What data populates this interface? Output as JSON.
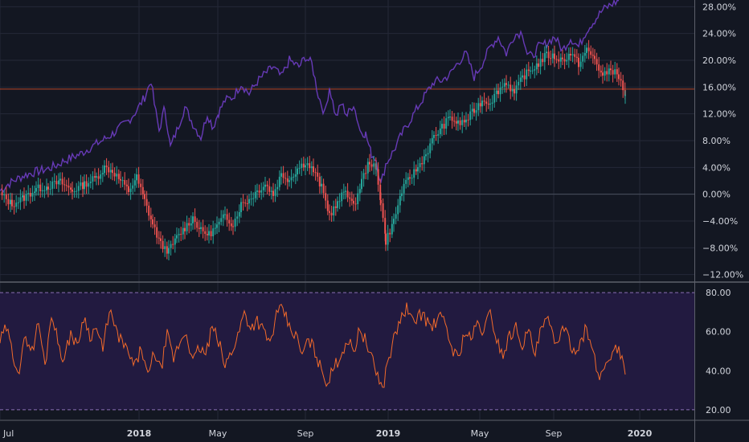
{
  "chart_data": [
    {
      "type": "candlestick",
      "ylim": [
        -13,
        29
      ],
      "y_ticks": [
        "28.00%",
        "24.00%",
        "20.00%",
        "16.00%",
        "12.00%",
        "8.00%",
        "4.00%",
        "0.00%",
        "−4.00%",
        "−8.00%",
        "−12.00%"
      ],
      "y_tick_values": [
        28,
        24,
        20,
        16,
        12,
        8,
        4,
        0,
        -4,
        -8,
        -12
      ],
      "reference_line": 15.7,
      "colors": {
        "up": "#26a69a",
        "down": "#ef5350",
        "comparison": "#673ab7",
        "reference": "#b7472a"
      },
      "series": [
        {
          "kind": "comparison-line",
          "x": [
            0,
            10,
            20,
            30,
            40,
            50,
            60,
            70,
            80,
            90,
            100,
            110,
            120,
            130,
            140,
            150,
            160,
            170,
            180,
            188,
            192,
            198,
            205,
            212,
            220,
            230,
            240,
            250,
            258,
            265,
            272,
            280,
            290,
            300,
            310,
            320,
            330,
            340,
            350,
            360,
            372,
            380,
            388,
            396,
            404,
            410,
            418,
            425,
            432,
            440,
            448,
            455,
            462,
            468,
            474,
            480,
            490,
            500,
            510,
            520,
            530,
            540,
            550,
            560,
            570,
            580,
            590,
            600,
            610,
            620,
            630,
            640,
            650,
            656,
            662,
            670,
            680,
            690,
            700,
            710,
            720,
            730,
            740,
            750,
            760,
            770
          ],
          "y": [
            0.5,
            1.5,
            2.2,
            2.8,
            3.2,
            3.5,
            3.8,
            4.3,
            5,
            5.5,
            6,
            6.8,
            7.5,
            8.2,
            9,
            10,
            11,
            12.5,
            14.5,
            17,
            13.5,
            9.5,
            13,
            7,
            9.5,
            13,
            10.5,
            8.5,
            12,
            10,
            12.2,
            14,
            14.5,
            16.5,
            15,
            16.8,
            18,
            19,
            17.5,
            20,
            19,
            20.5,
            19.5,
            14.8,
            12,
            16,
            11.5,
            13.5,
            11.8,
            13.5,
            9.5,
            9,
            6,
            5.2,
            1.5,
            4.5,
            6.5,
            9,
            11,
            13,
            15,
            16.8,
            17,
            17.9,
            19.7,
            21,
            17.5,
            19.5,
            22,
            23.5,
            21,
            23.8,
            24.2,
            21,
            20.5,
            22,
            22.5,
            23.5,
            21.5,
            23.3,
            22,
            24.5,
            26,
            27.5,
            28.3,
            28.9
          ]
        },
        {
          "kind": "candles",
          "x": [
            0,
            15,
            30,
            45,
            60,
            75,
            90,
            105,
            120,
            130,
            140,
            150,
            160,
            170,
            180,
            190,
            200,
            210,
            220,
            230,
            240,
            250,
            260,
            270,
            280,
            290,
            300,
            310,
            320,
            330,
            340,
            350,
            360,
            370,
            380,
            390,
            400,
            410,
            420,
            430,
            440,
            450,
            460,
            468,
            474,
            480,
            490,
            500,
            510,
            520,
            530,
            540,
            550,
            560,
            570,
            580,
            590,
            600,
            610,
            620,
            630,
            640,
            650,
            660,
            670,
            680,
            690,
            700,
            710,
            720,
            730,
            740,
            750,
            760,
            770,
            778
          ],
          "y": [
            0,
            -1.5,
            -0.5,
            0.8,
            1.2,
            1.8,
            0.5,
            1.5,
            2.5,
            4,
            3.5,
            2,
            0.5,
            2.5,
            -1,
            -4.5,
            -7.5,
            -8.5,
            -6.5,
            -5,
            -3.5,
            -5.5,
            -6,
            -4.8,
            -3.2,
            -4.5,
            -1.5,
            -0.8,
            0.5,
            1.5,
            0,
            3,
            2.2,
            3.8,
            4.8,
            3.5,
            1,
            -3,
            -1.5,
            0.8,
            -2,
            2,
            5,
            3.5,
            -1,
            -7,
            -4,
            0.5,
            2.5,
            4,
            6,
            8.5,
            10,
            11.5,
            10.5,
            11,
            12.5,
            14,
            13.8,
            15.5,
            16.8,
            15,
            17.5,
            18.5,
            19.5,
            20.8,
            20.5,
            20,
            21,
            19.5,
            21.5,
            20.2,
            17.5,
            18.8,
            17.5,
            14.8
          ]
        }
      ]
    },
    {
      "type": "line",
      "ylim": [
        15,
        85
      ],
      "y_ticks": [
        "80.00",
        "60.00",
        "40.00",
        "20.00"
      ],
      "y_tick_values": [
        80,
        60,
        40,
        20
      ],
      "band": [
        20,
        80
      ],
      "colors": {
        "line": "#f26a2a",
        "band_fill": "#221a40",
        "band_border": "#8a6fb5"
      },
      "x": [
        0,
        8,
        16,
        24,
        32,
        40,
        48,
        56,
        64,
        72,
        80,
        88,
        96,
        104,
        112,
        120,
        128,
        136,
        144,
        152,
        160,
        168,
        176,
        184,
        192,
        200,
        208,
        216,
        224,
        232,
        240,
        248,
        256,
        264,
        272,
        280,
        288,
        296,
        304,
        312,
        320,
        328,
        336,
        344,
        352,
        360,
        368,
        376,
        384,
        392,
        400,
        408,
        416,
        424,
        432,
        440,
        448,
        456,
        464,
        470,
        476,
        482,
        490,
        498,
        506,
        514,
        522,
        530,
        538,
        546,
        554,
        562,
        570,
        578,
        586,
        594,
        602,
        610,
        618,
        626,
        634,
        642,
        650,
        658,
        666,
        674,
        682,
        690,
        698,
        706,
        714,
        722,
        730,
        738,
        746,
        754,
        762,
        770,
        778
      ],
      "y": [
        55,
        62,
        48,
        40,
        58,
        50,
        65,
        42,
        70,
        55,
        45,
        60,
        52,
        68,
        58,
        62,
        50,
        72,
        60,
        55,
        48,
        42,
        52,
        36,
        50,
        40,
        58,
        46,
        55,
        60,
        44,
        52,
        48,
        62,
        55,
        42,
        50,
        58,
        70,
        62,
        66,
        60,
        54,
        68,
        72,
        62,
        58,
        48,
        56,
        50,
        40,
        34,
        42,
        48,
        56,
        50,
        62,
        54,
        44,
        38,
        30,
        44,
        56,
        66,
        72,
        64,
        70,
        66,
        62,
        68,
        64,
        52,
        46,
        60,
        56,
        64,
        60,
        70,
        56,
        48,
        58,
        62,
        54,
        60,
        48,
        62,
        66,
        54,
        60,
        58,
        50,
        55,
        62,
        48,
        36,
        44,
        50,
        52,
        38
      ]
    }
  ],
  "x_axis": {
    "labels": [
      "Jul",
      "2018",
      "May",
      "Sep",
      "2019",
      "May",
      "Sep",
      "2020"
    ],
    "positions": [
      0,
      173,
      271,
      380,
      483,
      597,
      689,
      796
    ],
    "major": [
      false,
      true,
      false,
      false,
      true,
      false,
      false,
      true
    ]
  }
}
